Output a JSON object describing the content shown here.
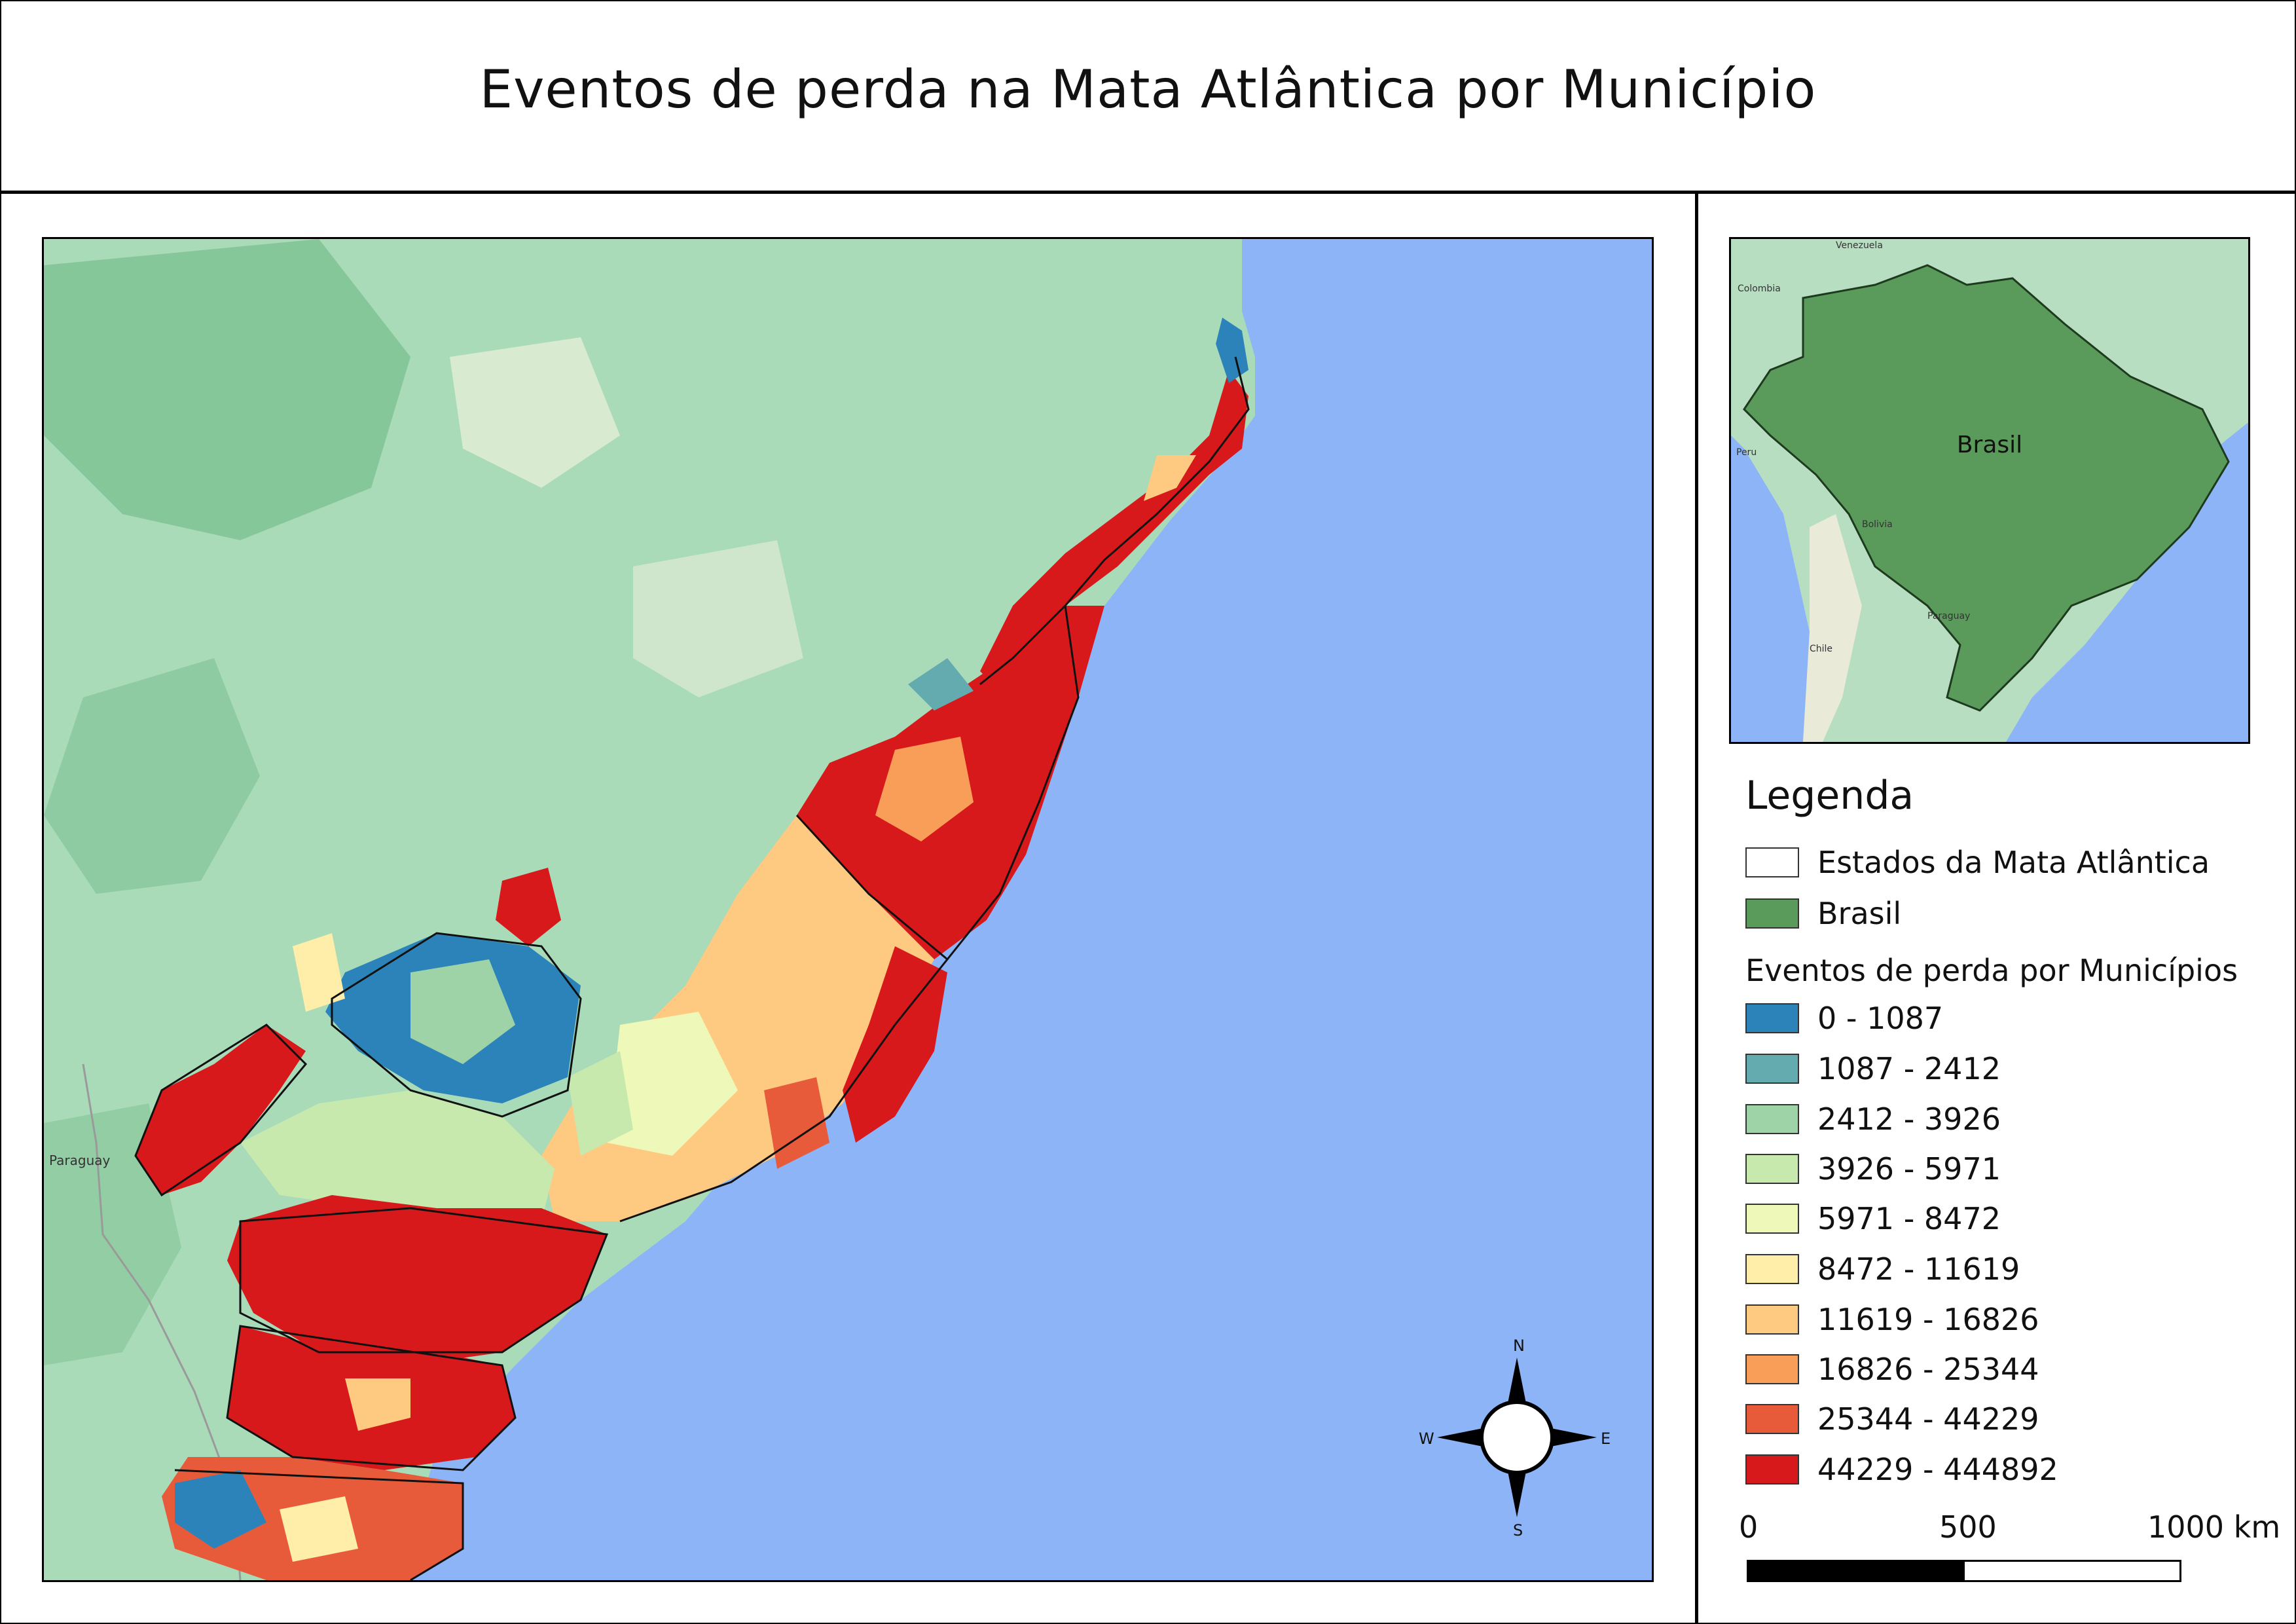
{
  "title": "Eventos de perda na Mata Atlântica por Município",
  "main_map": {
    "labels": {
      "paraguay": "Paraguay"
    },
    "compass": {
      "north": "N",
      "south": "S",
      "east": "E",
      "west": "W"
    }
  },
  "inset_map": {
    "country_label": "Brasil",
    "neighbors": [
      "Colombia",
      "Venezuela",
      "Peru",
      "Bolivia",
      "Chile",
      "Paraguay"
    ]
  },
  "legend": {
    "title": "Legenda",
    "items": [
      {
        "label": "Estados da Mata Atlântica",
        "color": "#ffffff"
      },
      {
        "label": "Brasil",
        "color": "#5a9a5a"
      }
    ],
    "classes_title": "Eventos de perda por Municípios",
    "classes": [
      {
        "label": "0 - 1087",
        "color": "#2b83ba"
      },
      {
        "label": "1087 - 2412",
        "color": "#64abb0"
      },
      {
        "label": "2412 - 3926",
        "color": "#9dd3a7"
      },
      {
        "label": "3926 - 5971",
        "color": "#c7e9ad"
      },
      {
        "label": "5971 - 8472",
        "color": "#edf8b9"
      },
      {
        "label": "8472 - 11619",
        "color": "#ffedaa"
      },
      {
        "label": "11619 - 16826",
        "color": "#fec980"
      },
      {
        "label": "16826 - 25344",
        "color": "#f99e59"
      },
      {
        "label": "25344 - 44229",
        "color": "#e85b3a"
      },
      {
        "label": "44229 - 444892",
        "color": "#d7191c"
      }
    ]
  },
  "scale": {
    "labels": [
      "0",
      "500",
      "1000 km"
    ]
  },
  "colors": {
    "ocean": "#8cb4f6",
    "land": "#a8dcb8",
    "land_dark": "#7fc797"
  }
}
